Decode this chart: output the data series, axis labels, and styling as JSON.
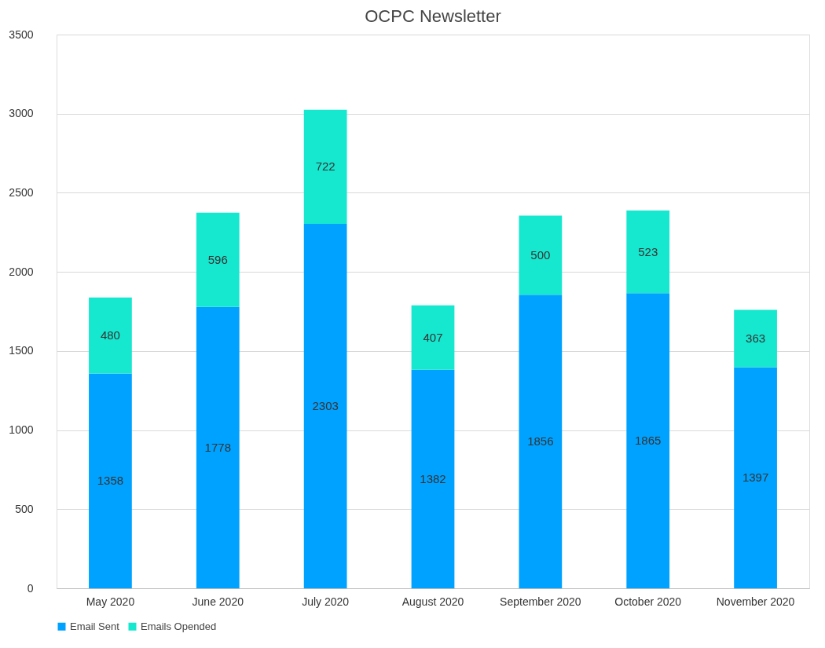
{
  "chart_data": {
    "type": "bar",
    "title": "OCPC Newsletter",
    "stacked": true,
    "data_labels": true,
    "grid": "y",
    "legend": "bottom",
    "categories": [
      "May 2020",
      "June 2020",
      "July 2020",
      "August 2020",
      "September 2020",
      "October 2020",
      "November 2020"
    ],
    "series": [
      {
        "name": "Email Sent",
        "color": "#00a2ff",
        "values": [
          1358,
          1778,
          2303,
          1382,
          1856,
          1865,
          1397
        ]
      },
      {
        "name": "Emails Opended",
        "color": "#16e7cf",
        "values": [
          480,
          596,
          722,
          407,
          500,
          523,
          363
        ]
      }
    ],
    "ylim": [
      0,
      3500
    ],
    "yticks": [
      0,
      500,
      1000,
      1500,
      2000,
      2500,
      3000,
      3500
    ]
  }
}
